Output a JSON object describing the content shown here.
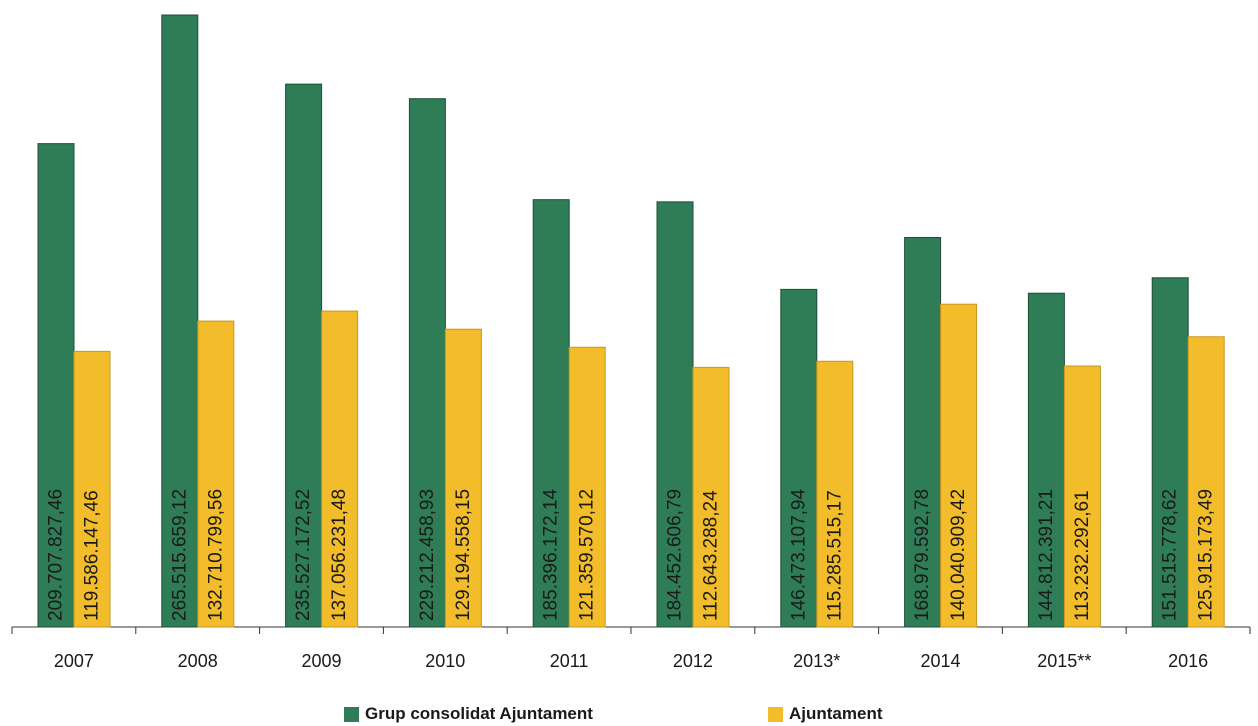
{
  "chart_data": {
    "type": "bar",
    "title": "",
    "xlabel": "",
    "ylabel": "",
    "categories": [
      "2007",
      "2008",
      "2009",
      "2010",
      "2011",
      "2012",
      "2013*",
      "2014",
      "2015**",
      "2016"
    ],
    "series": [
      {
        "name": "Grup consolidat Ajuntament",
        "color": "#2e7d57",
        "values": [
          209707827.46,
          265515659.12,
          235527172.52,
          229212458.93,
          185396172.14,
          184452606.79,
          146473107.94,
          168979592.78,
          144812391.21,
          151515778.62
        ],
        "labels": [
          "209.707.827,46",
          "265.515.659,12",
          "235.527.172,52",
          "229.212.458,93",
          "185.396.172,14",
          "184.452.606,79",
          "146.473.107,94",
          "168.979.592,78",
          "144.812.391,21",
          "151.515.778,62"
        ]
      },
      {
        "name": "Ajuntament",
        "color": "#f2bc2b",
        "values": [
          119586147.46,
          132710799.56,
          137056231.48,
          129194558.15,
          121359570.12,
          112643288.24,
          115285515.17,
          140040909.42,
          113232292.61,
          125915173.49
        ],
        "labels": [
          "119.586.147,46",
          "132.710.799,56",
          "137.056.231,48",
          "129.194.558,15",
          "121.359.570,12",
          "112.643.288,24",
          "115.285.515,17",
          "140.040.909,42",
          "113.232.292,61",
          "125.915.173,49"
        ]
      }
    ],
    "ylim": [
      0,
      265515659.12
    ],
    "grid": false,
    "legend_position": "bottom"
  }
}
